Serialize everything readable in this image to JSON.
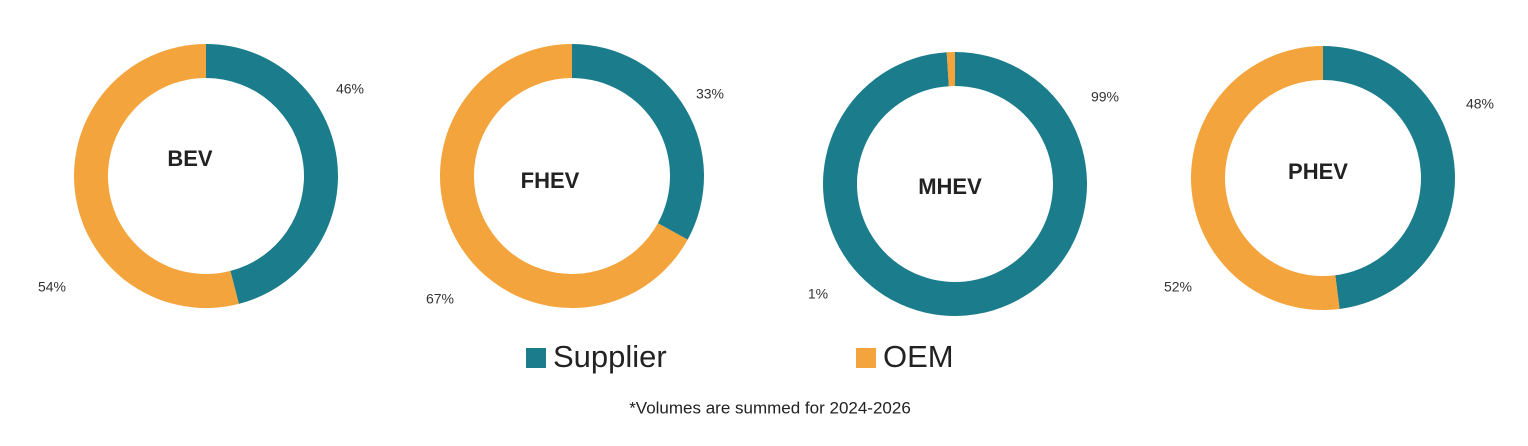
{
  "legend": [
    {
      "name": "Supplier",
      "color": "#1b7d8c"
    },
    {
      "name": "OEM",
      "color": "#f4a43c"
    }
  ],
  "note": "*Volumes are summed for 2024-2026",
  "chart_data": [
    {
      "type": "donut",
      "title": "BEV",
      "values": [
        46,
        54
      ],
      "value_labels": [
        "46%",
        "54%"
      ]
    },
    {
      "type": "donut",
      "title": "FHEV",
      "values": [
        33,
        67
      ],
      "value_labels": [
        "33%",
        "67%"
      ]
    },
    {
      "type": "donut",
      "title": "MHEV",
      "values": [
        99,
        1
      ],
      "value_labels": [
        "99%",
        "1%"
      ]
    },
    {
      "type": "donut",
      "title": "PHEV",
      "values": [
        48,
        52
      ],
      "value_labels": [
        "48%",
        "52%"
      ]
    }
  ]
}
